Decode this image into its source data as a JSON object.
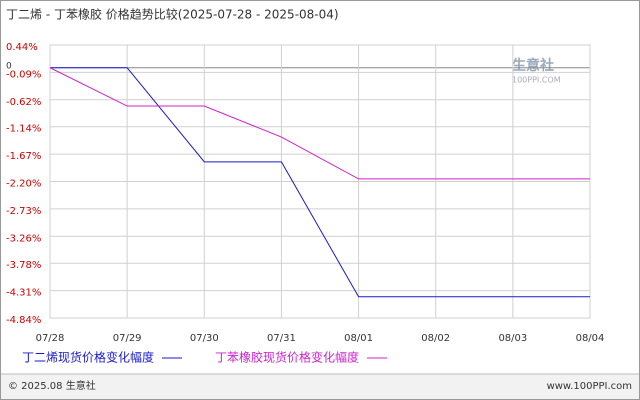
{
  "chart_data": {
    "type": "line",
    "title": "丁二烯 - 丁苯橡胶 价格趋势比较(2025-07-28 - 2025-08-04)",
    "categories": [
      "07/28",
      "07/29",
      "07/30",
      "07/31",
      "08/01",
      "08/02",
      "08/03",
      "08/04"
    ],
    "series": [
      {
        "name": "丁二烯现货价格变化幅度",
        "color": "#1a1acc",
        "values": [
          0,
          0,
          -1.82,
          -1.82,
          -4.43,
          -4.43,
          -4.43,
          -4.43
        ]
      },
      {
        "name": "丁苯橡胶现货价格变化幅度",
        "color": "#d020d0",
        "values": [
          0,
          -0.74,
          -0.74,
          -1.34,
          -2.15,
          -2.15,
          -2.15,
          -2.15
        ]
      }
    ],
    "ylim": [
      -4.84,
      0.44
    ],
    "yticks": [
      {
        "value": 0.44,
        "label": "0.44%"
      },
      {
        "value": -0.09,
        "label": "-0.09%"
      },
      {
        "value": -0.62,
        "label": "-0.62%"
      },
      {
        "value": -1.14,
        "label": "-1.14%"
      },
      {
        "value": -1.67,
        "label": "-1.67%"
      },
      {
        "value": -2.2,
        "label": "-2.20%"
      },
      {
        "value": -2.73,
        "label": "-2.73%"
      },
      {
        "value": -3.26,
        "label": "-3.26%"
      },
      {
        "value": -3.78,
        "label": "-3.78%"
      },
      {
        "value": -4.31,
        "label": "-4.31%"
      },
      {
        "value": -4.84,
        "label": "-4.84%"
      }
    ],
    "baseline": 0,
    "grid": true,
    "footer_left": "© 2025.08 生意社",
    "footer_right": "www.100PPI.com",
    "watermark": "生意社",
    "watermark_sub": "100PPI.COM"
  }
}
